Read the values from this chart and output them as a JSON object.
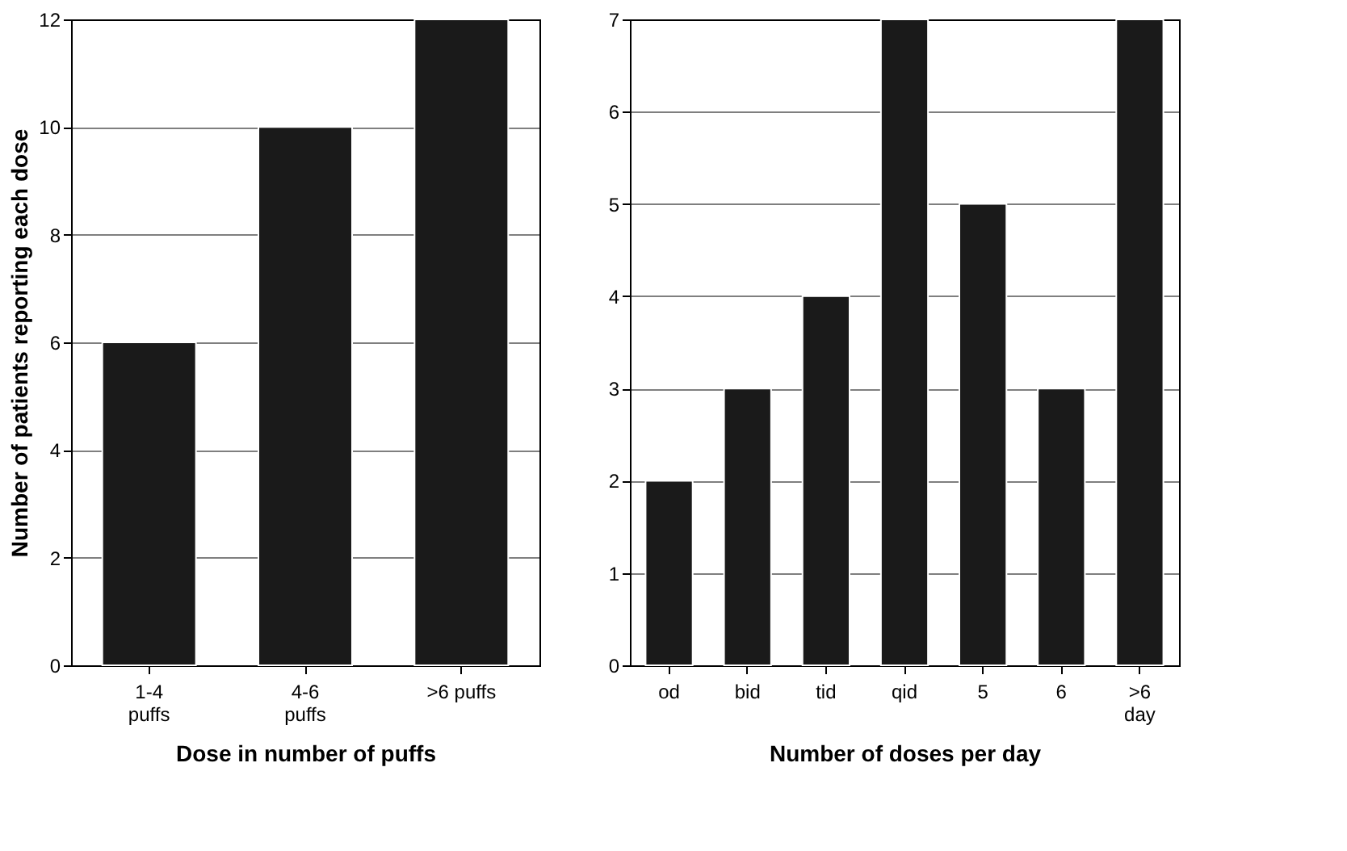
{
  "chart_data": [
    {
      "type": "bar",
      "xlabel": "Dose in number of puffs",
      "ylabel": "Number of patients reporting each dose",
      "categories": [
        "1-4\npuffs",
        "4-6\npuffs",
        ">6 puffs"
      ],
      "values": [
        6,
        10,
        12
      ],
      "color": "#1a1a1a",
      "ylim": [
        0,
        12
      ],
      "yticks": [
        0,
        2,
        4,
        6,
        8,
        10,
        12
      ],
      "grid": "y"
    },
    {
      "type": "bar",
      "xlabel": "Number of doses per day",
      "categories": [
        "od",
        "bid",
        "tid",
        "qid",
        "5",
        "6",
        ">6\nday"
      ],
      "values": [
        2,
        3,
        4,
        7,
        5,
        3,
        7
      ],
      "color": "#1a1a1a",
      "ylim": [
        0,
        7
      ],
      "yticks": [
        0,
        1,
        2,
        3,
        4,
        5,
        6,
        7
      ],
      "grid": "y"
    }
  ]
}
